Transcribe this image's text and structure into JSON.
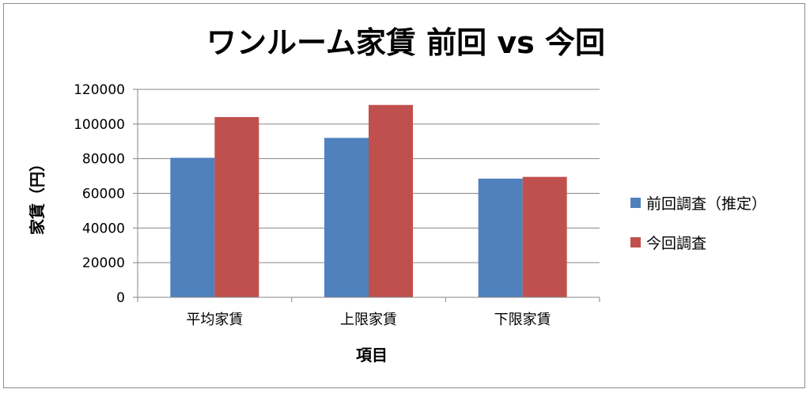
{
  "chart_data": {
    "type": "bar",
    "title": "ワンルーム家賃 前回 vs 今回",
    "xlabel": "項目",
    "ylabel": "家賃（円）",
    "categories": [
      "平均家賃",
      "上限家賃",
      "下限家賃"
    ],
    "series": [
      {
        "name": "前回調査（推定）",
        "values": [
          80500,
          92000,
          68500
        ],
        "color": "#4F81BD"
      },
      {
        "name": "今回調査",
        "values": [
          104000,
          111000,
          69500
        ],
        "color": "#C0504D"
      }
    ],
    "ylim": [
      0,
      120000
    ],
    "yticks": [
      "0",
      "20000",
      "40000",
      "60000",
      "80000",
      "100000",
      "120000"
    ],
    "grid": true,
    "legend_position": "right"
  }
}
